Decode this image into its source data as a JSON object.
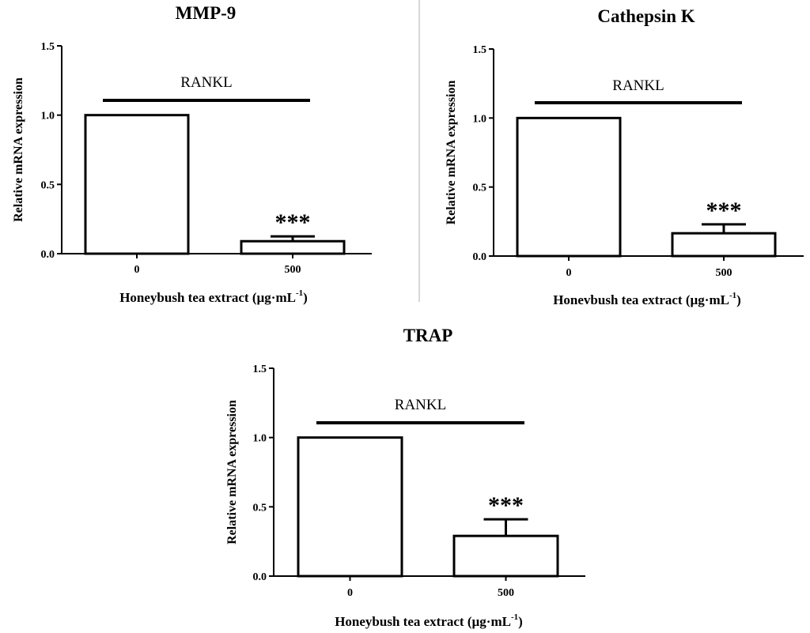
{
  "chart_data": [
    {
      "type": "bar",
      "title": "MMP-9",
      "ylabel": "Relative mRNA expression",
      "xlabel": "Honeybush tea extract (µg·mL",
      "xlabel_unit_sup": "-1",
      "xlabel_close": ")",
      "categories": [
        "0",
        "500"
      ],
      "values": [
        1.0,
        0.09
      ],
      "errors": [
        0,
        0.035
      ],
      "ylim": [
        0,
        1.5
      ],
      "yticks": [
        0.0,
        0.5,
        1.0,
        1.5
      ],
      "ytick_labels": [
        "0.0",
        "0.5",
        "1.0",
        "1.5"
      ],
      "annotation": "RANKL",
      "significance": [
        "",
        "***"
      ]
    },
    {
      "type": "bar",
      "title": "Cathepsin K",
      "ylabel": "Relative mRNA expression",
      "xlabel": "Honevbush tea extract (µg·mL",
      "xlabel_unit_sup": "-1",
      "xlabel_close": ")",
      "categories": [
        "0",
        "500"
      ],
      "values": [
        1.0,
        0.165
      ],
      "errors": [
        0,
        0.065
      ],
      "ylim": [
        0,
        1.5
      ],
      "yticks": [
        0.0,
        0.5,
        1.0,
        1.5
      ],
      "ytick_labels": [
        "0.0",
        "0.5",
        "1.0",
        "1.5"
      ],
      "annotation": "RANKL",
      "significance": [
        "",
        "***"
      ]
    },
    {
      "type": "bar",
      "title": "TRAP",
      "ylabel": "Relative mRNA expression",
      "xlabel": "Honeybush tea extract (µg·mL",
      "xlabel_unit_sup": "-1",
      "xlabel_close": ")",
      "categories": [
        "0",
        "500"
      ],
      "values": [
        1.0,
        0.29
      ],
      "errors": [
        0,
        0.12
      ],
      "ylim": [
        0,
        1.5
      ],
      "yticks": [
        0.0,
        0.5,
        1.0,
        1.5
      ],
      "ytick_labels": [
        "0.0",
        "0.5",
        "1.0",
        "1.5"
      ],
      "annotation": "RANKL",
      "significance": [
        "",
        "***"
      ]
    }
  ]
}
